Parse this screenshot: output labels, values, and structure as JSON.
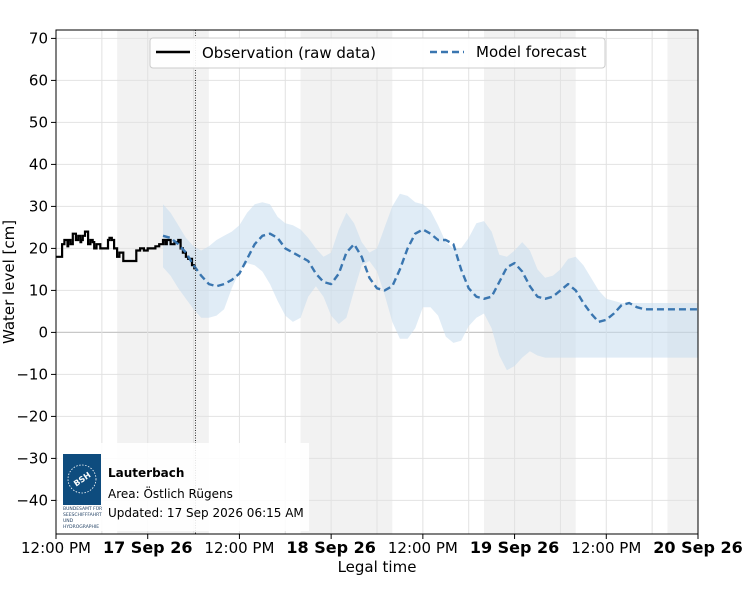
{
  "chart_data": {
    "type": "line",
    "xlabel": "Legal time",
    "ylabel": "Water level [cm]",
    "ylim": [
      -48,
      72
    ],
    "yticks": [
      -40,
      -30,
      -20,
      -10,
      0,
      10,
      20,
      30,
      40,
      50,
      60,
      70
    ],
    "ytick_labels": [
      "−40",
      "−30",
      "−20",
      "−10",
      "0",
      "10",
      "20",
      "30",
      "40",
      "50",
      "60",
      "70"
    ],
    "x_range_hours": [
      0,
      84
    ],
    "xticks": [
      {
        "hour": 0,
        "label": "12:00 PM",
        "bold": false
      },
      {
        "hour": 12,
        "label": "17 Sep 26",
        "bold": true
      },
      {
        "hour": 24,
        "label": "12:00 PM",
        "bold": false
      },
      {
        "hour": 36,
        "label": "18 Sep 26",
        "bold": true
      },
      {
        "hour": 48,
        "label": "12:00 PM",
        "bold": false
      },
      {
        "hour": 60,
        "label": "19 Sep 26",
        "bold": true
      },
      {
        "hour": 72,
        "label": "12:00 PM",
        "bold": false
      },
      {
        "hour": 84,
        "label": "20 Sep 26",
        "bold": true
      }
    ],
    "night_bands_hours": [
      [
        8,
        20
      ],
      [
        32,
        44
      ],
      [
        56,
        68
      ],
      [
        80,
        84
      ]
    ],
    "now_hour": 18.25,
    "grid": true,
    "legend": {
      "placement": "top",
      "entries": [
        "Observation (raw data)",
        "Model forecast"
      ]
    },
    "series": [
      {
        "name": "Observation (raw data)",
        "style": "solid",
        "color": "#000000",
        "x": [
          0,
          0.3,
          0.8,
          1.1,
          1.5,
          1.6,
          1.9,
          2.2,
          2.6,
          2.9,
          3.2,
          3.3,
          3.5,
          3.8,
          4.2,
          4.5,
          4.8,
          5.0,
          5.3,
          5.8,
          6.0,
          6.3,
          6.8,
          7.0,
          7.3,
          7.6,
          8.0,
          8.3,
          8.8,
          9.1,
          9.6,
          10.0,
          10.5,
          11.0,
          11.5,
          12.0,
          12.5,
          13.0,
          13.5,
          14.0,
          14.3,
          14.5,
          15.0,
          15.5,
          16.0,
          16.3,
          16.6,
          17.0,
          17.3,
          17.8,
          18.1
        ],
        "values": [
          18,
          18,
          21,
          22,
          20.5,
          22,
          21,
          23.5,
          22,
          23,
          21.5,
          22,
          23,
          24,
          21,
          22,
          21.5,
          20,
          21,
          20,
          20,
          20,
          22,
          22.5,
          22,
          20,
          18,
          19,
          17,
          17,
          17,
          17,
          19.5,
          20,
          19.5,
          20,
          20,
          20.5,
          21,
          22,
          21,
          22,
          21,
          21.5,
          22,
          20,
          19,
          18,
          17.5,
          16,
          15
        ]
      },
      {
        "name": "Model forecast",
        "style": "dashed",
        "color": "#3a76b0",
        "x": [
          14,
          15,
          16,
          17,
          18,
          19,
          20,
          21,
          22,
          23,
          24,
          25,
          26,
          27,
          28,
          29,
          30,
          31,
          32,
          33,
          34,
          35,
          36,
          37,
          38,
          39,
          40,
          41,
          42,
          43,
          44,
          45,
          46,
          47,
          48,
          49,
          50,
          51,
          52,
          53,
          54,
          55,
          56,
          57,
          58,
          59,
          60,
          61,
          62,
          63,
          64,
          65,
          66,
          67,
          68,
          69,
          70,
          71,
          72,
          73,
          74,
          75,
          76,
          77,
          78,
          79,
          80,
          81,
          82,
          83,
          84
        ],
        "values": [
          23,
          22.5,
          21,
          19,
          16,
          13.5,
          11.5,
          11,
          11.5,
          12.5,
          14,
          17.5,
          21,
          23,
          23.5,
          22.5,
          20,
          19,
          18,
          17,
          14,
          12,
          11.5,
          14,
          19,
          21,
          18,
          13,
          10.5,
          10,
          11,
          15,
          20,
          23.5,
          24.5,
          23.5,
          22,
          22,
          21,
          15,
          10.5,
          8.5,
          8,
          8.5,
          12,
          15.5,
          16.5,
          14.5,
          11,
          8.5,
          8,
          8.5,
          10,
          11.5,
          10,
          7,
          4.5,
          2.5,
          3,
          4.5,
          6.5,
          7,
          6,
          5.5,
          5.5,
          5.5,
          5.5,
          5.5,
          5.5,
          5.5,
          5.5
        ],
        "upper": [
          30.5,
          28.5,
          25.5,
          22.5,
          20.5,
          19.5,
          20.5,
          22,
          23,
          24,
          25.5,
          28.5,
          30.5,
          31,
          30.5,
          27.5,
          26,
          25.5,
          24.5,
          22.5,
          20,
          18,
          19,
          24.5,
          28.5,
          26,
          21.5,
          19,
          20,
          25,
          30,
          33,
          32.5,
          31,
          30.5,
          29,
          25.5,
          21.5,
          20,
          20,
          22.5,
          26,
          26.5,
          24,
          18.5,
          18,
          19.5,
          21.5,
          19.5,
          15,
          13,
          13.5,
          15,
          17.5,
          18,
          16,
          13,
          10,
          8,
          7.5,
          7,
          7,
          7,
          7,
          7,
          7,
          7,
          7,
          7,
          7,
          7
        ],
        "lower": [
          15.5,
          13.5,
          10.5,
          8,
          5.5,
          3.5,
          3.5,
          4,
          5.5,
          10.5,
          14.5,
          16.5,
          16,
          14.5,
          11.5,
          7.5,
          4,
          2.5,
          3.5,
          8.5,
          11,
          8.5,
          4,
          2,
          3.5,
          10,
          16,
          17,
          14.5,
          9,
          2.5,
          -1.5,
          -1.5,
          1,
          6,
          6,
          4,
          -1,
          -2.5,
          -2,
          1.5,
          3.5,
          4.5,
          1,
          -5.5,
          -9,
          -8,
          -6,
          -4.5,
          -5.5,
          -6,
          -6,
          -6,
          -6,
          -6,
          -6,
          -6,
          -6,
          -6,
          -6,
          -6,
          -6,
          -6,
          -6,
          -6,
          -6,
          -6,
          -6,
          -6,
          -6,
          -6
        ]
      }
    ]
  },
  "info_box": {
    "station": "Lauterbach",
    "area": "Area: Östlich Rügens",
    "updated": "Updated: 17 Sep 2026 06:15 AM",
    "logo_text": "BSH",
    "logo_caption_1": "BUNDESAMT FÜR",
    "logo_caption_2": "SEESCHIFFFAHRT",
    "logo_caption_3": "UND",
    "logo_caption_4": "HYDROGRAPHIE"
  },
  "colors": {
    "observation": "#000000",
    "forecast": "#3a76b0",
    "band": "#c6dcef",
    "night": "#f2f2f2",
    "logo": "#0e4c7e"
  }
}
